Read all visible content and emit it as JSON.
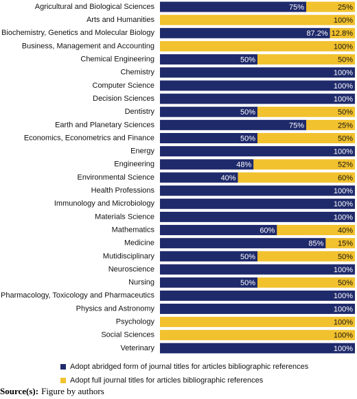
{
  "chart_data": {
    "type": "stacked-bar-horizontal",
    "categories": [
      "Agricultural and Biological Sciences",
      "Arts and Humanities",
      "Biochemistry, Genetics and Molecular Biology",
      "Business, Management and Accounting",
      "Chemical Engineering",
      "Chemistry",
      "Computer Science",
      "Decision Sciences",
      "Dentistry",
      "Earth and Planetary Sciences",
      "Economics, Econometrics and Finance",
      "Energy",
      "Engineering",
      "Environmental Science",
      "Health Professions",
      "Immunology and Microbiology",
      "Materials Science",
      "Mathematics",
      "Medicine",
      "Mutidisciplinary",
      "Neuroscience",
      "Nursing",
      "Pharmacology, Toxicology and Pharmaceutics",
      "Physics and Astronomy",
      "Psychology",
      "Social Sciences",
      "Veterinary"
    ],
    "xlim": [
      0,
      100
    ],
    "series": [
      {
        "name": "Adopt abridged form of journal titles for articles bibliographic references",
        "color": "#1f2a6b",
        "values": [
          75,
          0,
          87.2,
          0,
          50,
          100,
          100,
          100,
          50,
          75,
          50,
          100,
          48,
          40,
          100,
          100,
          100,
          60,
          85,
          50,
          100,
          50,
          100,
          100,
          0,
          0,
          100
        ],
        "value_labels": [
          "75%",
          null,
          "87.2%",
          null,
          "50%",
          "100%",
          "100%",
          "100%",
          "50%",
          "75%",
          "50%",
          "100%",
          "48%",
          "40%",
          "100%",
          "100%",
          "100%",
          "60%",
          "85%",
          "50%",
          "100%",
          "50%",
          "100%",
          "100%",
          null,
          null,
          "100%"
        ]
      },
      {
        "name": "Adopt full journal titles for articles bibliographic references",
        "color": "#f2c12e",
        "values": [
          25,
          100,
          12.8,
          100,
          50,
          0,
          0,
          0,
          50,
          25,
          50,
          0,
          52,
          60,
          0,
          0,
          0,
          40,
          15,
          50,
          0,
          50,
          0,
          0,
          100,
          100,
          0
        ],
        "value_labels": [
          "25%",
          "100%",
          "12.8%",
          "100%",
          "50%",
          null,
          null,
          null,
          "50%",
          "25%",
          "50%",
          null,
          "52%",
          "60%",
          null,
          null,
          null,
          "40%",
          "15%",
          "50%",
          null,
          "50%",
          null,
          null,
          "100%",
          "100%",
          null
        ]
      }
    ]
  },
  "source": {
    "label": "Source(s):",
    "text": "Figure by authors"
  }
}
